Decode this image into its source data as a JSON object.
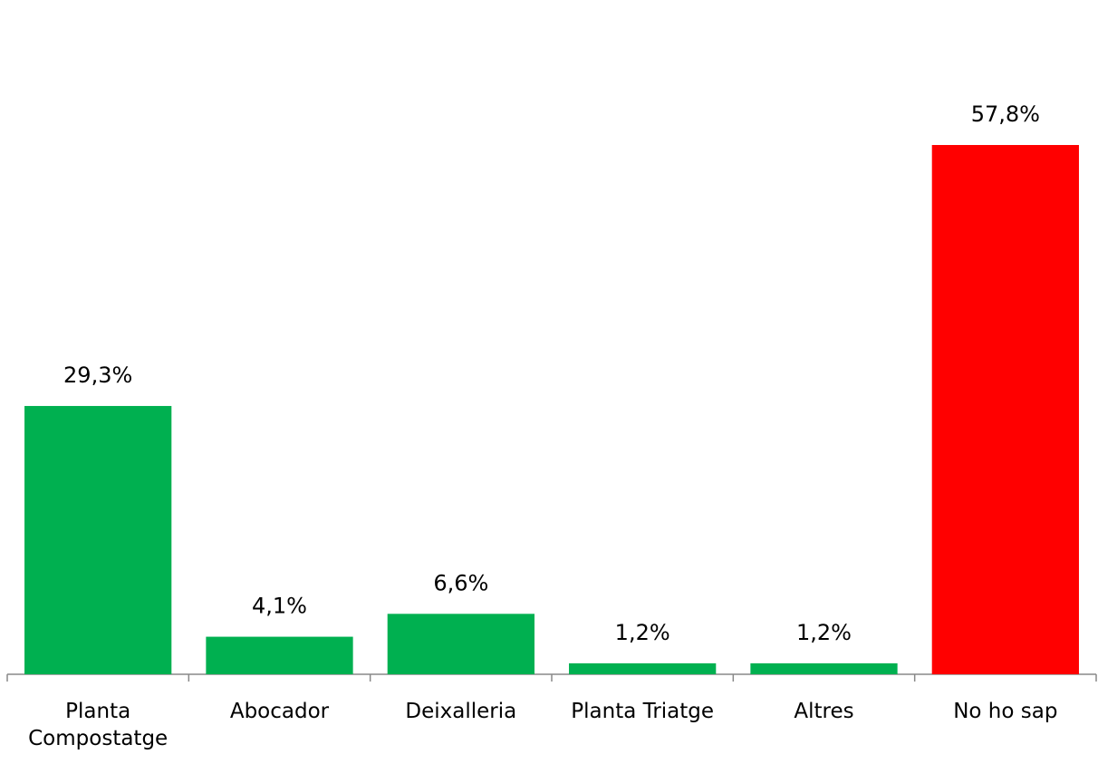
{
  "chart_data": {
    "type": "bar",
    "categories": [
      "Planta Compostatge",
      "Abocador",
      "Deixalleria",
      "Planta Triatge",
      "Altres",
      "No ho sap"
    ],
    "values": [
      29.3,
      4.1,
      6.6,
      1.2,
      1.2,
      57.8
    ],
    "value_labels": [
      "29,3%",
      "4,1%",
      "6,6%",
      "1,2%",
      "1,2%",
      "57,8%"
    ],
    "colors": [
      "#00b050",
      "#00b050",
      "#00b050",
      "#00b050",
      "#00b050",
      "#ff0000"
    ]
  }
}
